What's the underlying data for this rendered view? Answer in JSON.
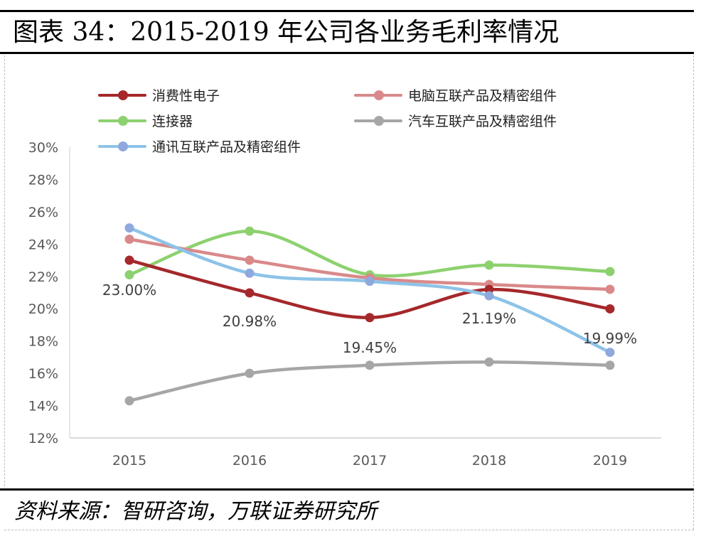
{
  "header": {
    "title": "图表 34：2015-2019 年公司各业务毛利率情况"
  },
  "footer": {
    "source": "资料来源：智研咨询，万联证券研究所"
  },
  "chart_data": {
    "type": "line",
    "title": "2015-2019 年公司各业务毛利率情况",
    "xlabel": "",
    "ylabel": "",
    "categories": [
      "2015",
      "2016",
      "2017",
      "2018",
      "2019"
    ],
    "ylim": [
      12,
      30
    ],
    "yticks": [
      12,
      14,
      16,
      18,
      20,
      22,
      24,
      26,
      28,
      30
    ],
    "ytick_labels": [
      "12%",
      "14%",
      "16%",
      "18%",
      "20%",
      "22%",
      "24%",
      "26%",
      "28%",
      "30%"
    ],
    "grid": false,
    "legend_position": "top",
    "series": [
      {
        "name": "消费性电子",
        "color": "#A5282B",
        "values": [
          23.0,
          20.98,
          19.45,
          21.19,
          19.99
        ],
        "data_labels": [
          "23.00%",
          "20.98%",
          "19.45%",
          "21.19%",
          "19.99%"
        ]
      },
      {
        "name": "电脑互联产品及精密组件",
        "color": "#D9898A",
        "values": [
          24.3,
          23.0,
          21.9,
          21.5,
          21.2
        ]
      },
      {
        "name": "连接器",
        "color": "#8DD16F",
        "values": [
          22.1,
          24.8,
          22.1,
          22.7,
          22.3
        ]
      },
      {
        "name": "汽车互联产品及精密组件",
        "color": "#A6A6A6",
        "values": [
          14.3,
          16.0,
          16.5,
          16.7,
          16.5
        ]
      },
      {
        "name": "通讯互联产品及精密组件",
        "color": "#8DC3E8",
        "marker_color": "#8FA8DD",
        "values": [
          25.0,
          22.2,
          21.7,
          20.8,
          17.3
        ]
      }
    ]
  }
}
